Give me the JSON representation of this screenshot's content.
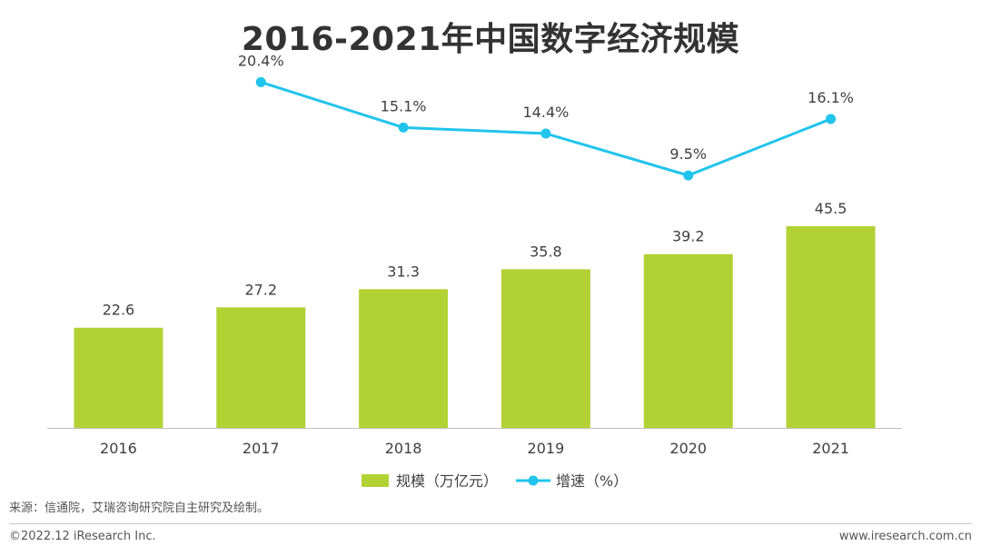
{
  "chart_data": {
    "type": "bar",
    "title": "2016-2021年中国数字经济规模",
    "categories": [
      "2016",
      "2017",
      "2018",
      "2019",
      "2020",
      "2021"
    ],
    "series": [
      {
        "name": "规模（万亿元）",
        "type": "bar",
        "axis": "left",
        "color": "#b2d234",
        "values": [
          22.6,
          27.2,
          31.3,
          35.8,
          39.2,
          45.5
        ],
        "labels": [
          "22.6",
          "27.2",
          "31.3",
          "35.8",
          "39.2",
          "45.5"
        ]
      },
      {
        "name": "增速（%）",
        "type": "line",
        "axis": "right",
        "color": "#21c4ec",
        "values": [
          null,
          20.4,
          15.1,
          14.4,
          9.5,
          16.1
        ],
        "labels": [
          "",
          "20.4%",
          "15.1%",
          "14.4%",
          "9.5%",
          "16.1%"
        ]
      }
    ],
    "ylim": [
      0,
      45.5
    ],
    "y2lim": [
      -20,
      30
    ],
    "grid": false,
    "legend_position": "bottom-center",
    "xlabel": "",
    "ylabel": ""
  },
  "footer": {
    "source": "来源：信通院，艾瑞咨询研究院自主研究及绘制。",
    "copyright": "©2022.12 iResearch Inc.",
    "website": "www.iresearch.com.cn"
  }
}
